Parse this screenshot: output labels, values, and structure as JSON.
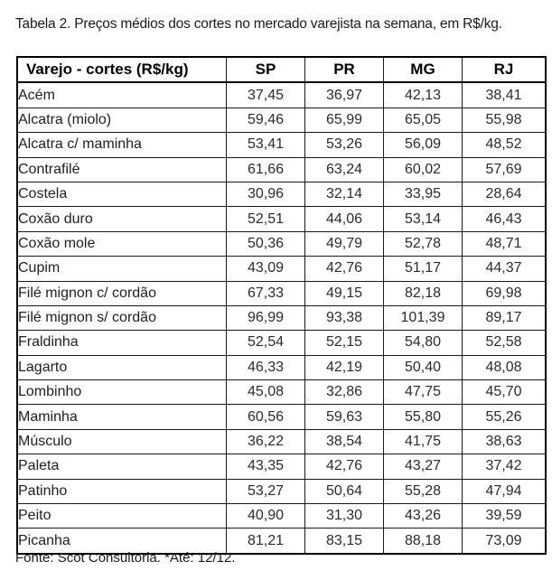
{
  "page": {
    "title": "Tabela 2. Preços médios dos cortes no mercado varejista na semana, em R$/kg.",
    "footer": "Fonte: Scot Consultoria. *Até: 12/12."
  },
  "table": {
    "columns": [
      "Varejo - cortes (R$/kg)",
      "SP",
      "PR",
      "MG",
      "RJ"
    ],
    "rows": [
      {
        "name": "Acém",
        "values": [
          "37,45",
          "36,97",
          "42,13",
          "38,41"
        ]
      },
      {
        "name": "Alcatra (miolo)",
        "values": [
          "59,46",
          "65,99",
          "65,05",
          "55,98"
        ]
      },
      {
        "name": "Alcatra c/ maminha",
        "values": [
          "53,41",
          "53,26",
          "56,09",
          "48,52"
        ]
      },
      {
        "name": "Contrafilé",
        "values": [
          "61,66",
          "63,24",
          "60,02",
          "57,69"
        ]
      },
      {
        "name": "Costela",
        "values": [
          "30,96",
          "32,14",
          "33,95",
          "28,64"
        ]
      },
      {
        "name": "Coxão duro",
        "values": [
          "52,51",
          "44,06",
          "53,14",
          "46,43"
        ]
      },
      {
        "name": "Coxão mole",
        "values": [
          "50,36",
          "49,79",
          "52,78",
          "48,71"
        ]
      },
      {
        "name": "Cupim",
        "values": [
          "43,09",
          "42,76",
          "51,17",
          "44,37"
        ]
      },
      {
        "name": "Filé mignon c/ cordão",
        "values": [
          "67,33",
          "49,15",
          "82,18",
          "69,98"
        ]
      },
      {
        "name": "Filé mignon s/ cordão",
        "values": [
          "96,99",
          "93,38",
          "101,39",
          "89,17"
        ]
      },
      {
        "name": "Fraldinha",
        "values": [
          "52,54",
          "52,15",
          "54,80",
          "52,58"
        ]
      },
      {
        "name": "Lagarto",
        "values": [
          "46,33",
          "42,19",
          "50,40",
          "48,08"
        ]
      },
      {
        "name": "Lombinho",
        "values": [
          "45,08",
          "32,86",
          "47,75",
          "45,70"
        ]
      },
      {
        "name": "Maminha",
        "values": [
          "60,56",
          "59,63",
          "55,80",
          "55,26"
        ]
      },
      {
        "name": "Músculo",
        "values": [
          "36,22",
          "38,54",
          "41,75",
          "38,63"
        ]
      },
      {
        "name": "Paleta",
        "values": [
          "43,35",
          "42,76",
          "43,27",
          "37,42"
        ]
      },
      {
        "name": "Patinho",
        "values": [
          "53,27",
          "50,64",
          "55,28",
          "47,94"
        ]
      },
      {
        "name": "Peito",
        "values": [
          "40,90",
          "31,30",
          "43,26",
          "39,59"
        ]
      },
      {
        "name": "Picanha",
        "values": [
          "81,21",
          "83,15",
          "88,18",
          "73,09"
        ]
      }
    ]
  }
}
